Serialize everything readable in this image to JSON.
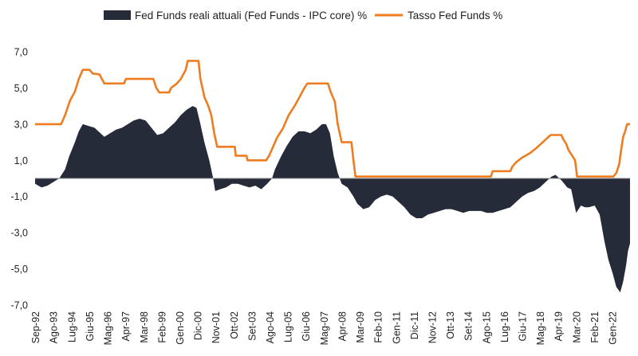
{
  "chart_data": {
    "type": "area+line",
    "title": "",
    "xlabel": "",
    "ylabel": "",
    "ylim": [
      -7,
      7
    ],
    "y_ticks": [
      "7,0",
      "5,0",
      "3,0",
      "1,0",
      "-1,0",
      "-3,0",
      "-5,0",
      "-7,0"
    ],
    "y_tick_values": [
      7,
      5,
      3,
      1,
      -1,
      -3,
      -5,
      -7
    ],
    "x_range": [
      1992.67,
      2023.0
    ],
    "x_tick_labels": [
      "Sep-92",
      "Ago-93",
      "Lug-94",
      "Giu-95",
      "Mag-96",
      "Apr-97",
      "Mar-98",
      "Feb-99",
      "Gen-00",
      "Dic-00",
      "Nov-01",
      "Ott-02",
      "Set-03",
      "Ago-04",
      "Lug-05",
      "Giu-06",
      "Mag-07",
      "Apr-08",
      "Mar-09",
      "Feb-10",
      "Gen-11",
      "Dic-11",
      "Nov-12",
      "Ott-13",
      "Set-14",
      "Ago-15",
      "Lug-16",
      "Giu-17",
      "Mag-18",
      "Apr-19",
      "Mar-20",
      "Feb-21",
      "Gen-22"
    ],
    "grid": false,
    "legend_position": "top",
    "colors": {
      "real": "#262b3a",
      "nominal": "#ee7d22"
    },
    "series": [
      {
        "name": "Fed Funds reali attuali (Fed Funds - IPC core) %",
        "kind": "area",
        "points": [
          [
            1992.67,
            -0.3
          ],
          [
            1993.0,
            -0.5
          ],
          [
            1993.3,
            -0.4
          ],
          [
            1993.6,
            -0.2
          ],
          [
            1993.9,
            0.0
          ],
          [
            1994.2,
            0.5
          ],
          [
            1994.4,
            1.2
          ],
          [
            1994.7,
            2.0
          ],
          [
            1994.9,
            2.6
          ],
          [
            1995.1,
            3.0
          ],
          [
            1995.4,
            2.9
          ],
          [
            1995.7,
            2.8
          ],
          [
            1995.9,
            2.6
          ],
          [
            1996.2,
            2.3
          ],
          [
            1996.5,
            2.5
          ],
          [
            1996.8,
            2.7
          ],
          [
            1997.1,
            2.8
          ],
          [
            1997.4,
            3.0
          ],
          [
            1997.7,
            3.2
          ],
          [
            1998.0,
            3.3
          ],
          [
            1998.3,
            3.2
          ],
          [
            1998.6,
            2.8
          ],
          [
            1998.9,
            2.4
          ],
          [
            1999.2,
            2.5
          ],
          [
            1999.5,
            2.8
          ],
          [
            1999.8,
            3.1
          ],
          [
            2000.1,
            3.5
          ],
          [
            2000.4,
            3.8
          ],
          [
            2000.7,
            4.0
          ],
          [
            2000.9,
            3.9
          ],
          [
            2001.1,
            3.0
          ],
          [
            2001.3,
            2.0
          ],
          [
            2001.55,
            1.0
          ],
          [
            2001.75,
            0.0
          ],
          [
            2001.85,
            -0.7
          ],
          [
            2002.1,
            -0.6
          ],
          [
            2002.4,
            -0.5
          ],
          [
            2002.7,
            -0.3
          ],
          [
            2003.0,
            -0.3
          ],
          [
            2003.3,
            -0.4
          ],
          [
            2003.6,
            -0.5
          ],
          [
            2003.9,
            -0.4
          ],
          [
            2004.2,
            -0.6
          ],
          [
            2004.5,
            -0.3
          ],
          [
            2004.75,
            0.0
          ],
          [
            2004.9,
            0.5
          ],
          [
            2005.2,
            1.2
          ],
          [
            2005.5,
            1.8
          ],
          [
            2005.8,
            2.3
          ],
          [
            2006.1,
            2.6
          ],
          [
            2006.4,
            2.6
          ],
          [
            2006.7,
            2.5
          ],
          [
            2007.0,
            2.7
          ],
          [
            2007.3,
            3.0
          ],
          [
            2007.5,
            3.0
          ],
          [
            2007.7,
            2.5
          ],
          [
            2007.9,
            1.2
          ],
          [
            2008.1,
            0.3
          ],
          [
            2008.3,
            -0.3
          ],
          [
            2008.6,
            -0.5
          ],
          [
            2008.9,
            -1.0
          ],
          [
            2009.1,
            -1.4
          ],
          [
            2009.4,
            -1.7
          ],
          [
            2009.7,
            -1.6
          ],
          [
            2010.0,
            -1.2
          ],
          [
            2010.3,
            -1.0
          ],
          [
            2010.6,
            -0.9
          ],
          [
            2010.9,
            -1.0
          ],
          [
            2011.2,
            -1.3
          ],
          [
            2011.5,
            -1.6
          ],
          [
            2011.8,
            -2.0
          ],
          [
            2012.1,
            -2.2
          ],
          [
            2012.4,
            -2.2
          ],
          [
            2012.7,
            -2.0
          ],
          [
            2013.0,
            -1.9
          ],
          [
            2013.3,
            -1.8
          ],
          [
            2013.6,
            -1.7
          ],
          [
            2013.9,
            -1.7
          ],
          [
            2014.2,
            -1.8
          ],
          [
            2014.5,
            -1.9
          ],
          [
            2014.8,
            -1.8
          ],
          [
            2015.1,
            -1.8
          ],
          [
            2015.4,
            -1.8
          ],
          [
            2015.7,
            -1.9
          ],
          [
            2016.0,
            -1.9
          ],
          [
            2016.3,
            -1.8
          ],
          [
            2016.6,
            -1.7
          ],
          [
            2016.9,
            -1.6
          ],
          [
            2017.2,
            -1.3
          ],
          [
            2017.5,
            -1.0
          ],
          [
            2017.8,
            -0.8
          ],
          [
            2018.1,
            -0.7
          ],
          [
            2018.4,
            -0.5
          ],
          [
            2018.7,
            -0.2
          ],
          [
            2019.0,
            0.1
          ],
          [
            2019.2,
            0.2
          ],
          [
            2019.5,
            -0.1
          ],
          [
            2019.8,
            -0.5
          ],
          [
            2020.0,
            -0.6
          ],
          [
            2020.25,
            -1.9
          ],
          [
            2020.5,
            -1.5
          ],
          [
            2020.7,
            -1.6
          ],
          [
            2020.9,
            -1.6
          ],
          [
            2021.2,
            -1.5
          ],
          [
            2021.45,
            -2.0
          ],
          [
            2021.7,
            -3.5
          ],
          [
            2021.9,
            -4.5
          ],
          [
            2022.1,
            -5.2
          ],
          [
            2022.3,
            -6.0
          ],
          [
            2022.5,
            -6.3
          ],
          [
            2022.65,
            -5.7
          ],
          [
            2022.8,
            -4.8
          ],
          [
            2022.9,
            -4.0
          ],
          [
            2023.0,
            -3.6
          ]
        ]
      },
      {
        "name": "Tasso Fed Funds %",
        "kind": "line",
        "points": [
          [
            1992.67,
            3.0
          ],
          [
            1994.0,
            3.0
          ],
          [
            1994.2,
            3.5
          ],
          [
            1994.45,
            4.3
          ],
          [
            1994.7,
            4.8
          ],
          [
            1994.9,
            5.5
          ],
          [
            1995.1,
            6.0
          ],
          [
            1995.45,
            6.0
          ],
          [
            1995.6,
            5.8
          ],
          [
            1995.95,
            5.75
          ],
          [
            1996.2,
            5.25
          ],
          [
            1997.2,
            5.25
          ],
          [
            1997.3,
            5.5
          ],
          [
            1998.7,
            5.5
          ],
          [
            1998.85,
            5.0
          ],
          [
            1999.0,
            4.75
          ],
          [
            1999.5,
            4.75
          ],
          [
            1999.6,
            5.0
          ],
          [
            1999.9,
            5.25
          ],
          [
            2000.1,
            5.5
          ],
          [
            2000.35,
            6.0
          ],
          [
            2000.45,
            6.5
          ],
          [
            2001.0,
            6.5
          ],
          [
            2001.1,
            5.5
          ],
          [
            2001.3,
            4.5
          ],
          [
            2001.5,
            4.0
          ],
          [
            2001.65,
            3.5
          ],
          [
            2001.8,
            2.5
          ],
          [
            2001.95,
            1.75
          ],
          [
            2002.85,
            1.75
          ],
          [
            2002.9,
            1.25
          ],
          [
            2003.45,
            1.25
          ],
          [
            2003.5,
            1.0
          ],
          [
            2004.45,
            1.0
          ],
          [
            2004.6,
            1.25
          ],
          [
            2004.8,
            1.75
          ],
          [
            2005.0,
            2.25
          ],
          [
            2005.3,
            2.75
          ],
          [
            2005.6,
            3.5
          ],
          [
            2005.9,
            4.0
          ],
          [
            2006.15,
            4.5
          ],
          [
            2006.4,
            5.0
          ],
          [
            2006.55,
            5.25
          ],
          [
            2007.6,
            5.25
          ],
          [
            2007.75,
            4.75
          ],
          [
            2007.95,
            4.25
          ],
          [
            2008.1,
            3.0
          ],
          [
            2008.3,
            2.0
          ],
          [
            2008.8,
            2.0
          ],
          [
            2008.9,
            1.0
          ],
          [
            2009.0,
            0.1
          ],
          [
            2015.9,
            0.1
          ],
          [
            2016.0,
            0.4
          ],
          [
            2016.9,
            0.4
          ],
          [
            2017.0,
            0.65
          ],
          [
            2017.2,
            0.9
          ],
          [
            2017.5,
            1.15
          ],
          [
            2017.9,
            1.4
          ],
          [
            2018.2,
            1.65
          ],
          [
            2018.45,
            1.9
          ],
          [
            2018.7,
            2.15
          ],
          [
            2018.95,
            2.4
          ],
          [
            2019.5,
            2.4
          ],
          [
            2019.6,
            2.15
          ],
          [
            2019.75,
            1.9
          ],
          [
            2019.85,
            1.6
          ],
          [
            2020.2,
            1.0
          ],
          [
            2020.3,
            0.1
          ],
          [
            2022.15,
            0.1
          ],
          [
            2022.3,
            0.3
          ],
          [
            2022.45,
            0.8
          ],
          [
            2022.55,
            1.6
          ],
          [
            2022.65,
            2.3
          ],
          [
            2022.75,
            2.6
          ],
          [
            2022.85,
            3.0
          ],
          [
            2023.0,
            3.0
          ]
        ]
      }
    ]
  }
}
